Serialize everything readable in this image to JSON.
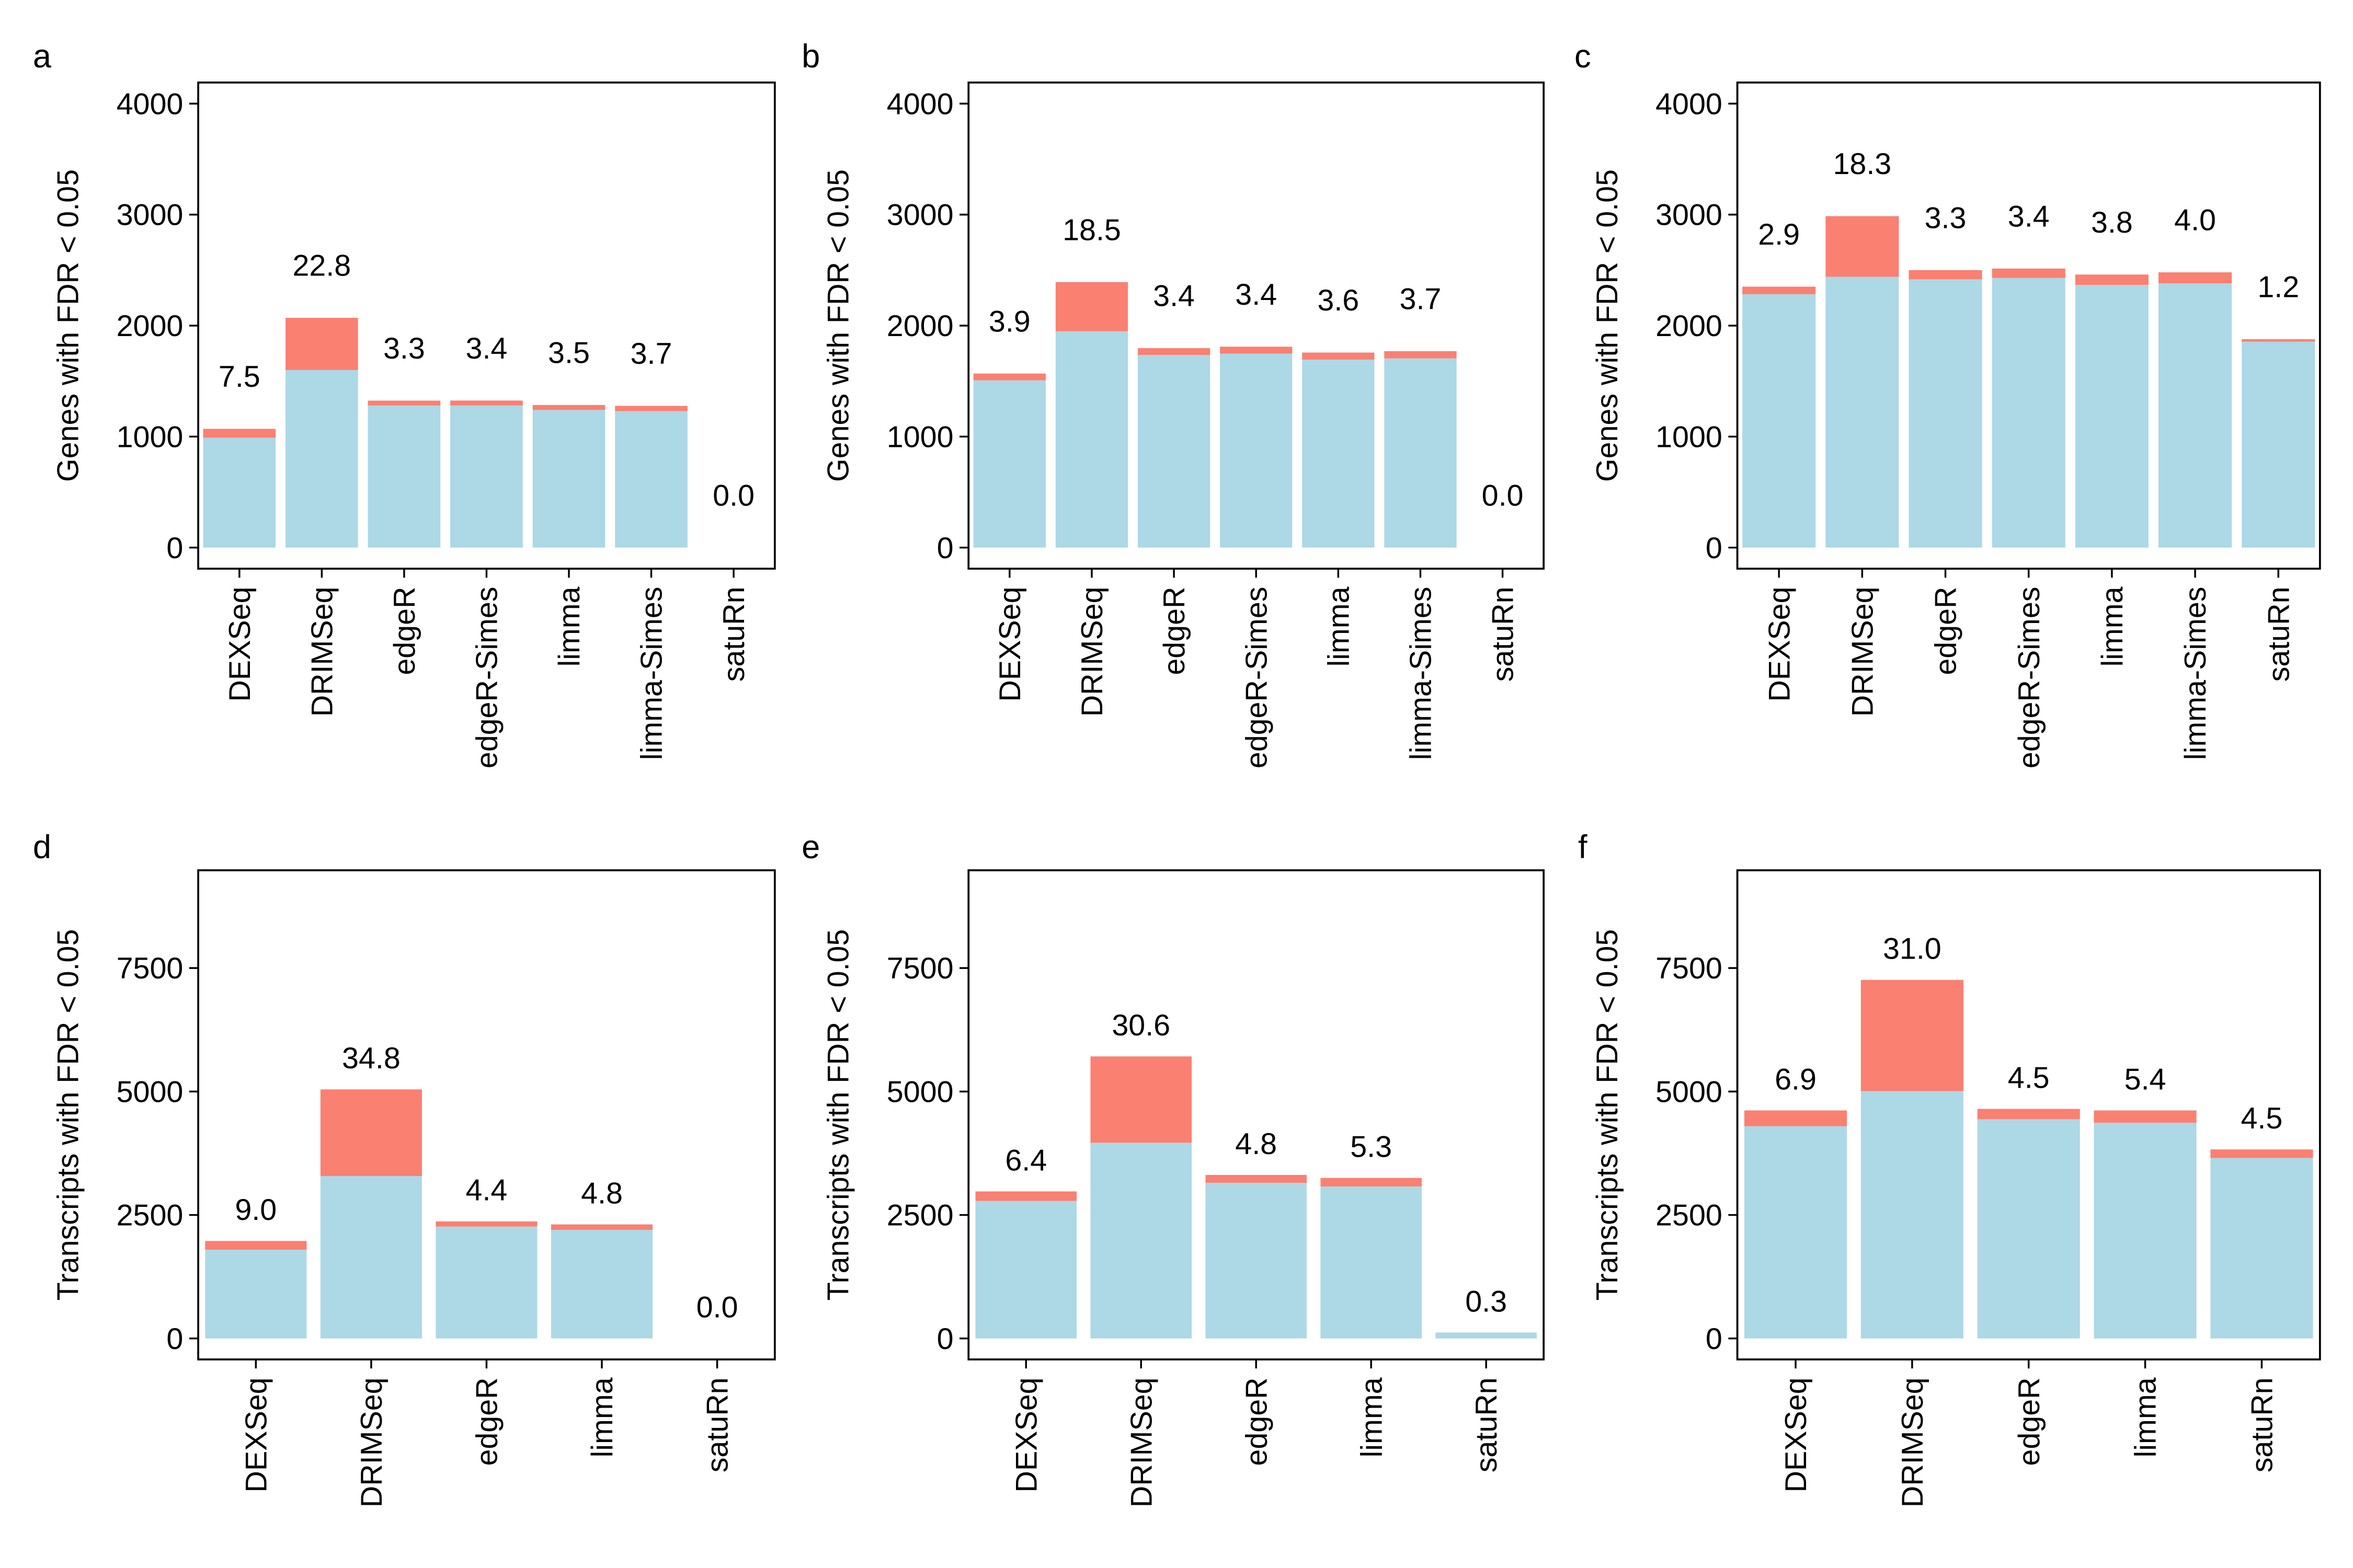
{
  "chart_data": [
    {
      "type": "stacked_bar",
      "panel": "a",
      "y_label": "Genes with FDR < 0.05",
      "categories": [
        "DEXSeq",
        "DRIMSeq",
        "edgeR",
        "edgeR-Simes",
        "limma",
        "limma-Simes",
        "satuRn"
      ],
      "series": [
        {
          "color": "#add8e6",
          "values": [
            990,
            1600,
            1280,
            1280,
            1240,
            1230,
            0
          ]
        },
        {
          "color": "#fa8072",
          "values": [
            80,
            470,
            44,
            45,
            45,
            47,
            0
          ]
        }
      ],
      "bar_labels": [
        "7.5",
        "22.8",
        "3.3",
        "3.4",
        "3.5",
        "3.7",
        "0.0"
      ],
      "ylim": [
        -190,
        4190
      ],
      "yticks": [
        0,
        1000,
        2000,
        3000,
        4000
      ]
    },
    {
      "type": "stacked_bar",
      "panel": "b",
      "y_label": "Genes with FDR < 0.05",
      "categories": [
        "DEXSeq",
        "DRIMSeq",
        "edgeR",
        "edgeR-Simes",
        "limma",
        "limma-Simes",
        "satuRn"
      ],
      "series": [
        {
          "color": "#add8e6",
          "values": [
            1507,
            1949,
            1736,
            1748,
            1694,
            1705,
            0
          ]
        },
        {
          "color": "#fa8072",
          "values": [
            61,
            443,
            61,
            62,
            63,
            65,
            0
          ]
        }
      ],
      "bar_labels": [
        "3.9",
        "18.5",
        "3.4",
        "3.4",
        "3.6",
        "3.7",
        "0.0"
      ],
      "ylim": [
        -190,
        4190
      ],
      "yticks": [
        0,
        1000,
        2000,
        3000,
        4000
      ]
    },
    {
      "type": "stacked_bar",
      "panel": "c",
      "y_label": "Genes with FDR < 0.05",
      "categories": [
        "DEXSeq",
        "DRIMSeq",
        "edgeR",
        "edgeR-Simes",
        "limma",
        "limma-Simes",
        "satuRn"
      ],
      "series": [
        {
          "color": "#add8e6",
          "values": [
            2283,
            2440,
            2417,
            2429,
            2367,
            2381,
            1855
          ]
        },
        {
          "color": "#fa8072",
          "values": [
            68,
            546,
            83,
            85,
            93,
            99,
            23
          ]
        }
      ],
      "bar_labels": [
        "2.9",
        "18.3",
        "3.3",
        "3.4",
        "3.8",
        "4.0",
        "1.2"
      ],
      "ylim": [
        -190,
        4190
      ],
      "yticks": [
        0,
        1000,
        2000,
        3000,
        4000
      ]
    },
    {
      "type": "stacked_bar",
      "panel": "d",
      "y_label": "Transcripts with FDR < 0.05",
      "categories": [
        "DEXSeq",
        "DRIMSeq",
        "edgeR",
        "limma",
        "satuRn"
      ],
      "series": [
        {
          "color": "#add8e6",
          "values": [
            1796,
            3288,
            2266,
            2198,
            0
          ]
        },
        {
          "color": "#fa8072",
          "values": [
            178,
            1755,
            104,
            111,
            0
          ]
        }
      ],
      "bar_labels": [
        "9.0",
        "34.8",
        "4.4",
        "4.8",
        "0.0"
      ],
      "ylim": [
        -425,
        9480
      ],
      "yticks": [
        0,
        2500,
        5000,
        7500
      ]
    },
    {
      "type": "stacked_bar",
      "panel": "e",
      "y_label": "Transcripts with FDR < 0.05",
      "categories": [
        "DEXSeq",
        "DRIMSeq",
        "edgeR",
        "limma",
        "satuRn"
      ],
      "series": [
        {
          "color": "#add8e6",
          "values": [
            2786,
            3963,
            3152,
            3078,
            120
          ]
        },
        {
          "color": "#fa8072",
          "values": [
            191,
            1748,
            159,
            172,
            0
          ]
        }
      ],
      "bar_labels": [
        "6.4",
        "30.6",
        "4.8",
        "5.3",
        "0.3"
      ],
      "ylim": [
        -425,
        9480
      ],
      "yticks": [
        0,
        2500,
        5000,
        7500
      ]
    },
    {
      "type": "stacked_bar",
      "panel": "f",
      "y_label": "Transcripts with FDR < 0.05",
      "categories": [
        "DEXSeq",
        "DRIMSeq",
        "edgeR",
        "limma",
        "satuRn"
      ],
      "series": [
        {
          "color": "#add8e6",
          "values": [
            4298,
            5009,
            4439,
            4368,
            3655
          ]
        },
        {
          "color": "#fa8072",
          "values": [
            319,
            2251,
            209,
            249,
            172
          ]
        }
      ],
      "bar_labels": [
        "6.9",
        "31.0",
        "4.5",
        "5.4",
        "4.5"
      ],
      "ylim": [
        -425,
        9480
      ],
      "yticks": [
        0,
        2500,
        5000,
        7500
      ]
    }
  ]
}
